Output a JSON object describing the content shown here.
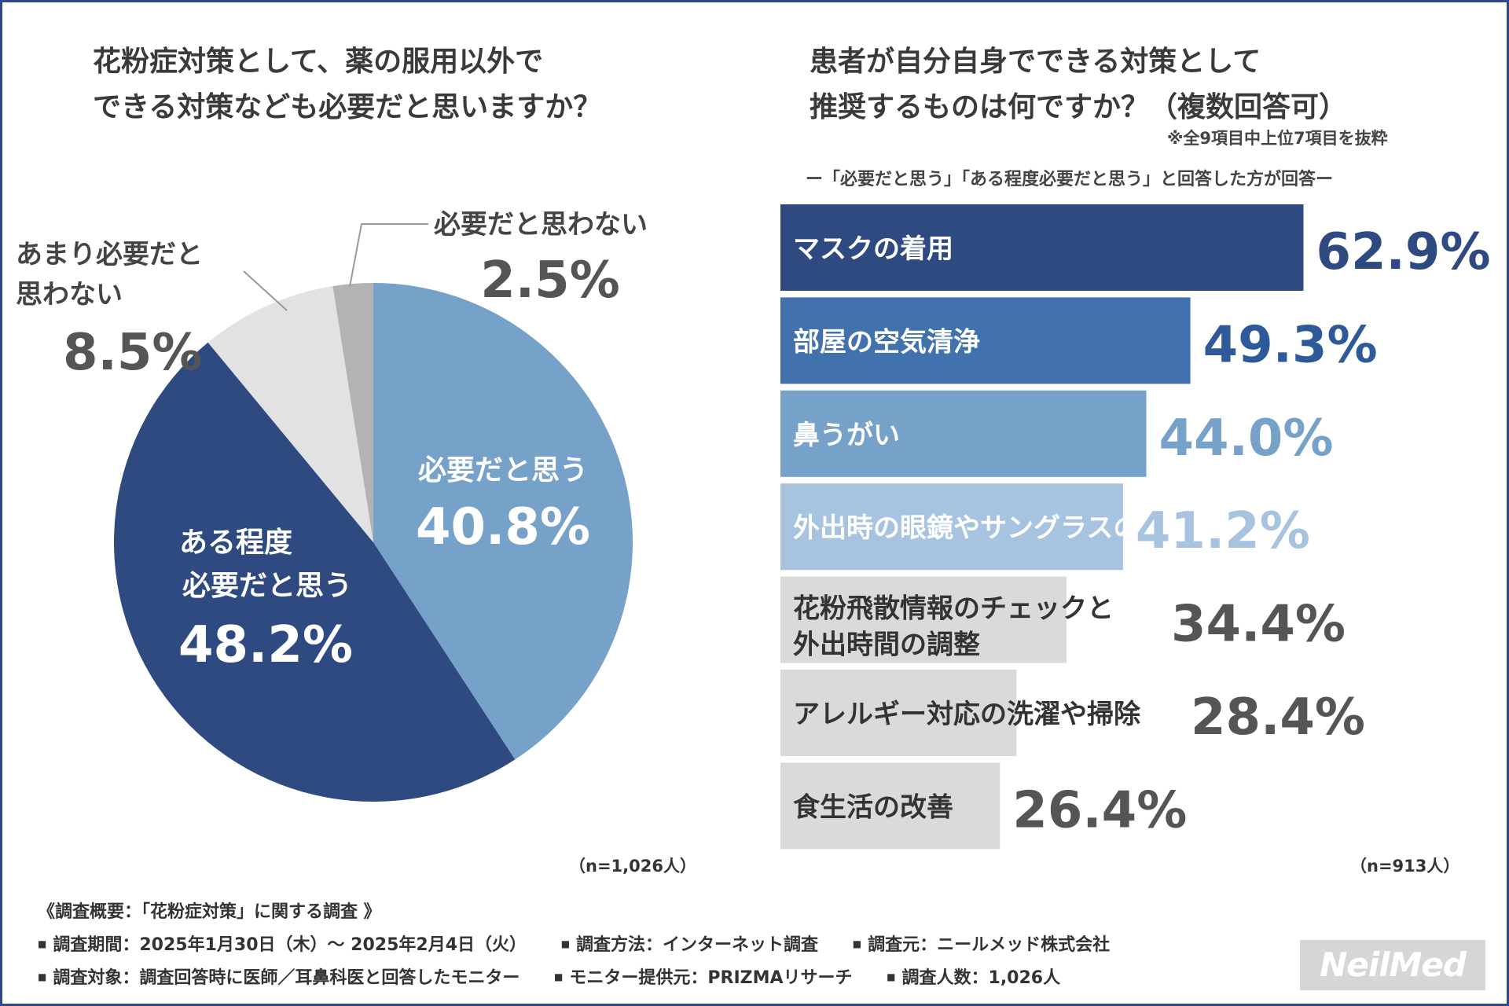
{
  "left_title_line1": "花粉症対策として、薬の服用以外で",
  "left_title_line2": "できる対策なども必要だと思いますか？",
  "right_title_line1": "患者が自分自身でできる対策として",
  "right_title_line2": "推奨するものは何ですか？（複数回答可）",
  "right_note": "※全9項目中上位7項目を抜粋",
  "right_subnote": "ー「必要だと思う」「ある程度必要だと思う」と回答した方が回答ー",
  "n_left": "（n=1,026人）",
  "n_right": "（n=913人）",
  "survey": {
    "title": "《調査概要：「花粉症対策」に関する調査 》",
    "line1": [
      "調査期間：2025年1月30日（木）～ 2025年2月4日（火）",
      "調査方法：インターネット調査",
      "調査元：ニールメッド株式会社"
    ],
    "line2": [
      "調査対象：調査回答時に医師／耳鼻科医と回答したモニター",
      "モニター提供元：PRIZMAリサーチ",
      "調査人数：1,026人"
    ]
  },
  "logo": "NeilMed",
  "chart_data": [
    {
      "type": "pie",
      "title": "花粉症対策として、薬の服用以外でできる対策なども必要だと思いますか？",
      "slices": [
        {
          "label": "必要だと思う",
          "value": 40.8,
          "display": "40.8%",
          "color": "#76a1c8"
        },
        {
          "label": "ある程度必要だと思う",
          "label_lines": [
            "ある程度",
            "必要だと思う"
          ],
          "value": 48.2,
          "display": "48.2%",
          "color": "#2e4a80"
        },
        {
          "label": "あまり必要だと思わない",
          "label_lines": [
            "あまり必要だと",
            "思わない"
          ],
          "value": 8.5,
          "display": "8.5%",
          "color": "#e2e2e2"
        },
        {
          "label": "必要だと思わない",
          "value": 2.5,
          "display": "2.5%",
          "color": "#b3b3b3"
        }
      ],
      "n": "n=1,026人"
    },
    {
      "type": "bar",
      "orientation": "horizontal",
      "title": "患者が自分自身でできる対策として推奨するものは何ですか？（複数回答可）",
      "unit": "%",
      "bars": [
        {
          "label": "マスクの着用",
          "value": 62.9,
          "display": "62.9%",
          "color": "#2e4a80",
          "label_color": "#ffffff",
          "value_color": "#2e4a80"
        },
        {
          "label": "部屋の空気清浄",
          "value": 49.3,
          "display": "49.3%",
          "color": "#4272ad",
          "label_color": "#ffffff",
          "value_color": "#2f5a99"
        },
        {
          "label": "鼻うがい",
          "value": 44.0,
          "display": "44.0%",
          "color": "#76a1c8",
          "label_color": "#ffffff",
          "value_color": "#76a1c8"
        },
        {
          "label": "外出時の眼鏡やサングラスの着用",
          "value": 41.2,
          "display": "41.2%",
          "color": "#a7c3df",
          "label_color": "#ffffff",
          "value_color": "#a7c3df"
        },
        {
          "label": "花粉飛散情報のチェックと外出時間の調整",
          "label_lines": [
            "花粉飛散情報のチェックと",
            "外出時間の調整"
          ],
          "value": 34.4,
          "display": "34.4%",
          "color": "#dadada",
          "label_color": "#333333",
          "value_color": "#555555"
        },
        {
          "label": "アレルギー対応の洗濯や掃除",
          "value": 28.4,
          "display": "28.4%",
          "color": "#dadada",
          "label_color": "#333333",
          "value_color": "#555555"
        },
        {
          "label": "食生活の改善",
          "value": 26.4,
          "display": "26.4%",
          "color": "#dadada",
          "label_color": "#333333",
          "value_color": "#555555"
        }
      ],
      "n": "n=913人"
    }
  ]
}
